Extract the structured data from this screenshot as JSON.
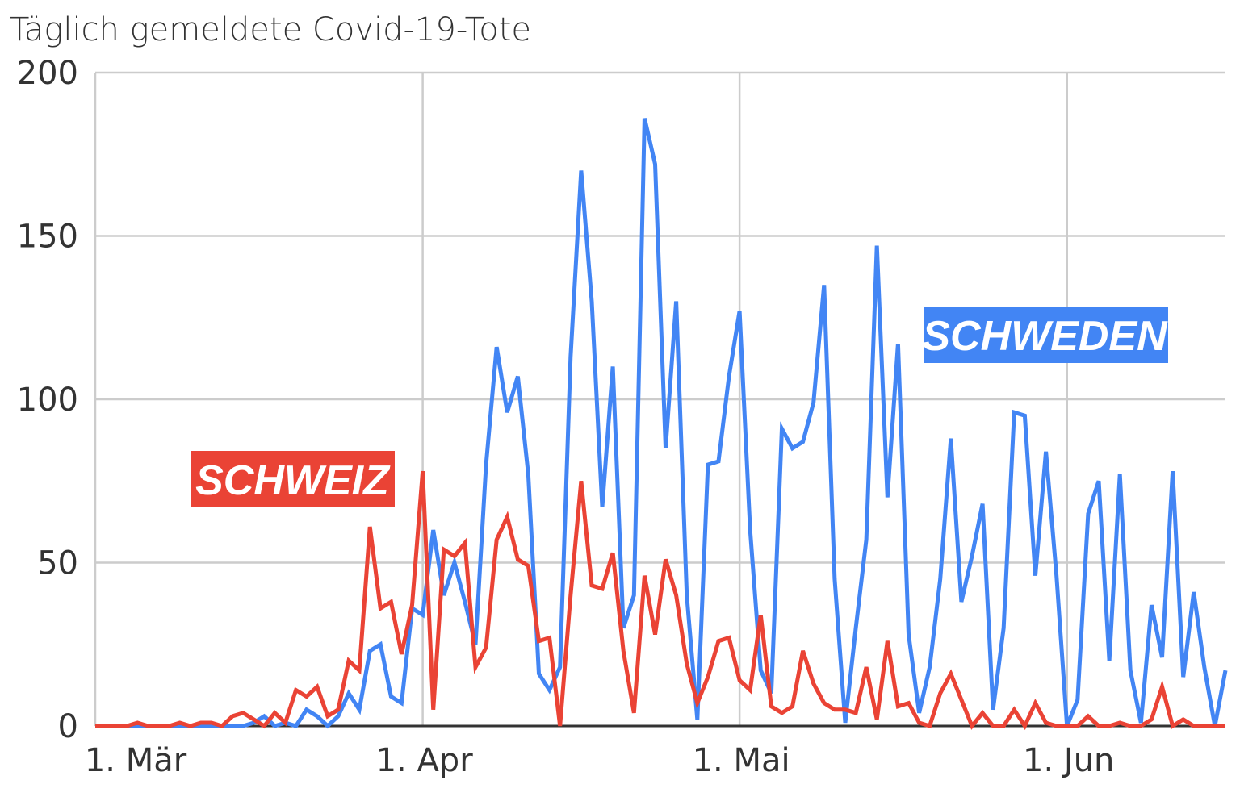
{
  "chart_data": {
    "type": "line",
    "title": "Täglich gemeldete Covid-19-Tote",
    "xlabel": "",
    "ylabel": "",
    "ylim": [
      0,
      200
    ],
    "yticks": [
      0,
      50,
      100,
      150,
      200
    ],
    "xrange_days": [
      0,
      107
    ],
    "xticks": [
      {
        "day": 0,
        "label": "1. Mär"
      },
      {
        "day": 31,
        "label": "1. Apr"
      },
      {
        "day": 61,
        "label": "1. Mai"
      },
      {
        "day": 92,
        "label": "1. Jun"
      }
    ],
    "grid": true,
    "series": [
      {
        "name": "SCHWEDEN",
        "color": "#4285f4",
        "values": [
          0,
          0,
          0,
          0,
          0,
          0,
          0,
          0,
          0,
          0,
          0,
          0,
          0,
          0,
          0,
          1,
          3,
          0,
          1,
          0,
          5,
          3,
          0,
          3,
          10,
          5,
          23,
          25,
          9,
          7,
          36,
          34,
          60,
          40,
          50,
          38,
          25,
          80,
          116,
          96,
          107,
          77,
          16,
          11,
          18,
          113,
          170,
          130,
          67,
          110,
          30,
          40,
          186,
          172,
          85,
          130,
          40,
          2,
          80,
          81,
          107,
          127,
          60,
          17,
          10,
          91,
          85,
          87,
          99,
          135,
          45,
          1,
          30,
          57,
          147,
          70,
          117,
          28,
          4,
          18,
          45,
          88,
          38,
          52,
          68,
          5,
          30,
          96,
          95,
          46,
          84,
          46,
          0,
          8,
          65,
          75,
          20,
          77,
          17,
          1,
          37,
          21,
          78,
          15,
          41,
          18,
          0,
          17
        ]
      },
      {
        "name": "SCHWEIZ",
        "color": "#ea4335",
        "values": [
          0,
          0,
          0,
          0,
          1,
          0,
          0,
          0,
          1,
          0,
          1,
          1,
          0,
          3,
          4,
          2,
          0,
          4,
          1,
          11,
          9,
          12,
          3,
          5,
          20,
          17,
          61,
          36,
          38,
          22,
          37,
          78,
          5,
          54,
          52,
          56,
          18,
          24,
          57,
          64,
          51,
          49,
          26,
          27,
          0,
          40,
          75,
          43,
          42,
          53,
          23,
          4,
          46,
          28,
          51,
          40,
          19,
          7,
          15,
          26,
          27,
          14,
          11,
          34,
          6,
          4,
          6,
          23,
          13,
          7,
          5,
          5,
          4,
          18,
          2,
          26,
          6,
          7,
          1,
          0,
          10,
          16,
          8,
          0,
          4,
          0,
          0,
          5,
          0,
          7,
          1,
          0,
          0,
          0,
          3,
          0,
          0,
          1,
          0,
          0,
          2,
          12,
          0,
          2,
          0,
          0,
          0,
          0
        ]
      }
    ],
    "annotations": [
      {
        "text": "SCHWEIZ",
        "series": "SCHWEIZ"
      },
      {
        "text": "SCHWEDEN",
        "series": "SCHWEDEN"
      }
    ]
  }
}
